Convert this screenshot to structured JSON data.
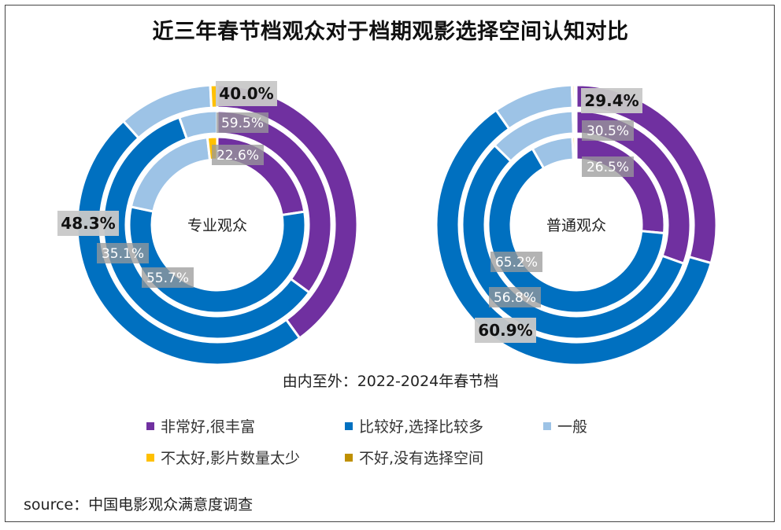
{
  "title": "近三年春节档观众对于档期观影选择空间认知对比",
  "subtitle": "由内至外：2022-2024年春节档",
  "source": "source：中国电影观众满意度调查",
  "colors": {
    "very_good": "#7030A0",
    "good": "#0070C0",
    "average": "#9DC3E6",
    "not_good": "#FFC000",
    "bad": "#BF9000"
  },
  "legend": [
    {
      "label": "非常好,很丰富",
      "color": "#7030A0"
    },
    {
      "label": "比较好,选择比较多",
      "color": "#0070C0"
    },
    {
      "label": "一般",
      "color": "#9DC3E6"
    },
    {
      "label": "不太好,影片数量太少",
      "color": "#FFC000"
    },
    {
      "label": "不好,没有选择空间",
      "color": "#BF9000"
    }
  ],
  "chart_data": [
    {
      "type": "donut",
      "center_label": "专业观众",
      "categories": [
        "非常好,很丰富",
        "比较好,选择比较多",
        "一般",
        "不太好,影片数量太少",
        "不好,没有选择空间"
      ],
      "series": [
        {
          "name": "2022",
          "values": [
            22.6,
            55.7,
            19.9,
            1.8,
            0.0
          ]
        },
        {
          "name": "2023",
          "values": [
            35.1,
            59.5,
            5.4,
            0.0,
            0.0
          ]
        },
        {
          "name": "2024",
          "values": [
            40.0,
            48.3,
            10.9,
            0.8,
            0.0
          ]
        }
      ],
      "labels": [
        {
          "ring": 0,
          "category": 0,
          "text": "22.6%"
        },
        {
          "ring": 0,
          "category": 1,
          "text": "55.7%"
        },
        {
          "ring": 1,
          "category": 0,
          "text": "35.1%"
        },
        {
          "ring": 1,
          "category": 1,
          "text": "59.5%"
        },
        {
          "ring": 2,
          "category": 0,
          "text": "40.0%"
        },
        {
          "ring": 2,
          "category": 1,
          "text": "48.3%"
        }
      ]
    },
    {
      "type": "donut",
      "center_label": "普通观众",
      "categories": [
        "非常好,很丰富",
        "比较好,选择比较多",
        "一般",
        "不太好,影片数量太少",
        "不好,没有选择空间"
      ],
      "series": [
        {
          "name": "2022",
          "values": [
            26.5,
            65.2,
            7.6,
            0.5,
            0.2
          ]
        },
        {
          "name": "2023",
          "values": [
            30.5,
            56.8,
            12.2,
            0.3,
            0.2
          ]
        },
        {
          "name": "2024",
          "values": [
            29.4,
            60.9,
            9.2,
            0.3,
            0.2
          ]
        }
      ],
      "labels": [
        {
          "ring": 0,
          "category": 0,
          "text": "26.5%"
        },
        {
          "ring": 0,
          "category": 1,
          "text": "65.2%"
        },
        {
          "ring": 1,
          "category": 0,
          "text": "30.5%"
        },
        {
          "ring": 1,
          "category": 1,
          "text": "56.8%"
        },
        {
          "ring": 2,
          "category": 0,
          "text": "29.4%"
        },
        {
          "ring": 2,
          "category": 1,
          "text": "60.9%"
        }
      ]
    }
  ]
}
